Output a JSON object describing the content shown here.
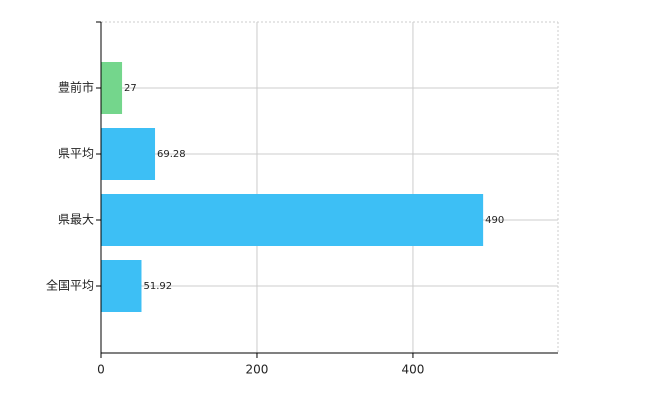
{
  "chart_data": {
    "type": "hbar",
    "categories": [
      "豊前市",
      "県平均",
      "県最大",
      "全国平均"
    ],
    "values": [
      27,
      69.28,
      490,
      51.92
    ],
    "colors": [
      "#74d68c",
      "#3dbff5",
      "#3dbff5",
      "#3dbff5"
    ],
    "xlim": [
      0,
      586
    ],
    "xticks": [
      0,
      200,
      400
    ],
    "grid": true
  }
}
